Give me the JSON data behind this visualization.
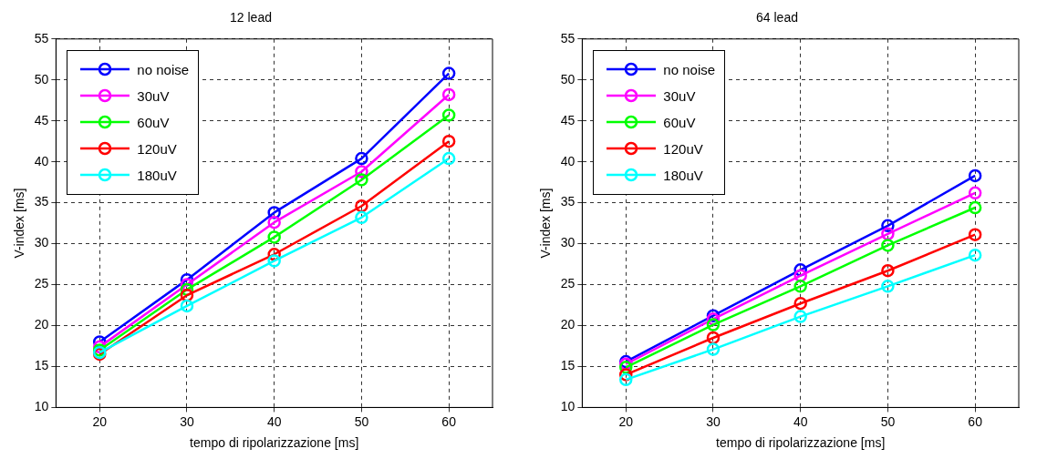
{
  "chart_data": [
    {
      "type": "line",
      "title": "12 lead",
      "xlabel": "tempo di ripolarizzazione [ms]",
      "ylabel": "V-index [ms]",
      "x": [
        20,
        30,
        40,
        50,
        60
      ],
      "xlim": [
        15,
        65
      ],
      "xticks": [
        20,
        30,
        40,
        50,
        60
      ],
      "ylim": [
        10,
        55
      ],
      "yticks": [
        10,
        15,
        20,
        25,
        30,
        35,
        40,
        45,
        50,
        55
      ],
      "grid": true,
      "legend": "top left",
      "marker": "circle",
      "line_style": "solid",
      "series": [
        {
          "name": "no noise",
          "color": "#0000ff",
          "values": [
            18,
            25.6,
            33.8,
            40.4,
            50.8
          ]
        },
        {
          "name": "30uV",
          "color": "#ff00ff",
          "values": [
            17.4,
            25,
            32.6,
            38.8,
            48.2
          ]
        },
        {
          "name": "60uV",
          "color": "#00ff00",
          "values": [
            17,
            24.4,
            30.8,
            37.8,
            45.7
          ]
        },
        {
          "name": "120uV",
          "color": "#ff0000",
          "values": [
            16.5,
            23.7,
            28.7,
            34.6,
            42.5
          ]
        },
        {
          "name": "180uV",
          "color": "#00ffff",
          "values": [
            16.7,
            22.4,
            27.9,
            33.2,
            40.4
          ]
        }
      ]
    },
    {
      "type": "line",
      "title": "64 lead",
      "xlabel": "tempo di ripolarizzazione [ms]",
      "ylabel": "V-index [ms]",
      "x": [
        20,
        30,
        40,
        50,
        60
      ],
      "xlim": [
        15,
        65
      ],
      "xticks": [
        20,
        30,
        40,
        50,
        60
      ],
      "ylim": [
        10,
        55
      ],
      "yticks": [
        10,
        15,
        20,
        25,
        30,
        35,
        40,
        45,
        50,
        55
      ],
      "grid": true,
      "legend": "top left",
      "marker": "circle",
      "line_style": "solid",
      "series": [
        {
          "name": "no noise",
          "color": "#0000ff",
          "values": [
            15.6,
            21.2,
            26.8,
            32.2,
            38.3
          ]
        },
        {
          "name": "30uV",
          "color": "#ff00ff",
          "values": [
            15.3,
            20.8,
            26.1,
            31.2,
            36.2
          ]
        },
        {
          "name": "60uV",
          "color": "#00ff00",
          "values": [
            14.9,
            20.1,
            24.8,
            29.8,
            34.4
          ]
        },
        {
          "name": "120uV",
          "color": "#ff0000",
          "values": [
            14,
            18.5,
            22.7,
            26.7,
            31.1
          ]
        },
        {
          "name": "180uV",
          "color": "#00ffff",
          "values": [
            13.4,
            17.1,
            21.1,
            24.8,
            28.6
          ]
        }
      ]
    }
  ]
}
